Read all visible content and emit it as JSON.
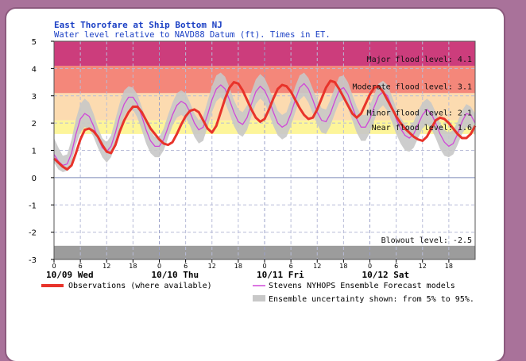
{
  "chart_data": {
    "type": "line",
    "title": "East Thorofare at Ship Bottom NJ",
    "subtitle": "Water level relative to NAVD88 Datum (ft). Times in ET.",
    "ylim": [
      -3,
      5
    ],
    "yticks": [
      -3,
      -2,
      -1,
      0,
      1,
      2,
      3,
      4,
      5
    ],
    "xlim_hours": [
      0,
      96
    ],
    "xtick_labels": [
      "0",
      "6",
      "12",
      "18",
      "0",
      "6",
      "12",
      "18",
      "0",
      "6",
      "12",
      "18",
      "0",
      "6",
      "12",
      "18"
    ],
    "xtick_hours": [
      0,
      6,
      12,
      18,
      24,
      30,
      36,
      42,
      48,
      54,
      60,
      66,
      72,
      78,
      84,
      90
    ],
    "day_labels": [
      {
        "hour": 0,
        "text": "10/09 Wed"
      },
      {
        "hour": 24,
        "text": "10/10 Thu"
      },
      {
        "hour": 48,
        "text": "10/11 Fri"
      },
      {
        "hour": 72,
        "text": "10/12 Sat"
      }
    ],
    "bands": [
      {
        "name": "blowout",
        "from": -3,
        "to": -2.5,
        "color": "#9c9c9c",
        "label": "Blowout level: -2.5"
      },
      {
        "name": "near",
        "from": 1.6,
        "to": 2.1,
        "color": "#fdf59a",
        "label": "Near flood level: 1.6"
      },
      {
        "name": "minor",
        "from": 2.1,
        "to": 3.1,
        "color": "#fcdbb0",
        "label": "Minor flood level: 2.1"
      },
      {
        "name": "moderate",
        "from": 3.1,
        "to": 4.1,
        "color": "#f4877a",
        "label": "Moderate flood level: 3.1"
      },
      {
        "name": "major",
        "from": 4.1,
        "to": 5,
        "color": "#cc3d7c",
        "label": "Major flood level: 4.1"
      }
    ],
    "series": [
      {
        "name": "Observations (where available)",
        "color": "#e8332a",
        "x": [
          0,
          1,
          2,
          3,
          4,
          5,
          6,
          7,
          8,
          9,
          10,
          11,
          12,
          13,
          14,
          15,
          16,
          17,
          18,
          19,
          20,
          21,
          22,
          23,
          24,
          25,
          26,
          27,
          28,
          29,
          30,
          31,
          32,
          33,
          34,
          35,
          36,
          37,
          38,
          39,
          40,
          41,
          42,
          43,
          44,
          45,
          46,
          47,
          48,
          49,
          50,
          51,
          52,
          53,
          54,
          55,
          56,
          57,
          58,
          59,
          60,
          61,
          62,
          63,
          64,
          65,
          66,
          67,
          68,
          69,
          70,
          71,
          72,
          73,
          74,
          75,
          76,
          77,
          78,
          79,
          80,
          81,
          82,
          83,
          84,
          85,
          86,
          87,
          88,
          89,
          90,
          91,
          92,
          93,
          94,
          95,
          96
        ],
        "y": [
          0.7,
          0.55,
          0.4,
          0.3,
          0.45,
          0.9,
          1.4,
          1.75,
          1.8,
          1.7,
          1.5,
          1.2,
          0.95,
          0.9,
          1.2,
          1.7,
          2.1,
          2.4,
          2.6,
          2.6,
          2.4,
          2.1,
          1.8,
          1.6,
          1.4,
          1.25,
          1.2,
          1.3,
          1.6,
          1.95,
          2.25,
          2.45,
          2.5,
          2.4,
          2.1,
          1.8,
          1.65,
          1.9,
          2.4,
          2.9,
          3.3,
          3.5,
          3.45,
          3.2,
          2.85,
          2.5,
          2.2,
          2.05,
          2.15,
          2.5,
          2.9,
          3.25,
          3.4,
          3.35,
          3.15,
          2.85,
          2.55,
          2.3,
          2.15,
          2.2,
          2.5,
          2.9,
          3.3,
          3.55,
          3.5,
          3.25,
          2.95,
          2.65,
          2.35,
          2.2,
          2.35,
          2.7,
          3.05,
          3.3,
          3.35,
          3.15,
          2.85,
          2.55,
          2.25,
          2.0,
          1.8,
          1.65,
          1.5,
          1.4,
          1.35,
          1.5,
          1.8,
          2.1,
          2.2,
          2.15,
          2.0,
          1.8,
          1.6,
          1.45,
          1.45,
          1.6,
          1.9
        ]
      },
      {
        "name": "Stevens NYHOPS Ensemble Forecast models",
        "color": "#d048d8",
        "x": [
          0,
          1,
          2,
          3,
          4,
          5,
          6,
          7,
          8,
          9,
          10,
          11,
          12,
          13,
          14,
          15,
          16,
          17,
          18,
          19,
          20,
          21,
          22,
          23,
          24,
          25,
          26,
          27,
          28,
          29,
          30,
          31,
          32,
          33,
          34,
          35,
          36,
          37,
          38,
          39,
          40,
          41,
          42,
          43,
          44,
          45,
          46,
          47,
          48,
          49,
          50,
          51,
          52,
          53,
          54,
          55,
          56,
          57,
          58,
          59,
          60,
          61,
          62,
          63,
          64,
          65,
          66,
          67,
          68,
          69,
          70,
          71,
          72,
          73,
          74,
          75,
          76,
          77,
          78,
          79,
          80,
          81,
          82,
          83,
          84,
          85,
          86,
          87,
          88,
          89,
          90,
          91,
          92,
          93,
          94,
          95,
          96
        ],
        "y": [
          0.85,
          0.6,
          0.45,
          0.5,
          0.9,
          1.6,
          2.15,
          2.35,
          2.25,
          1.9,
          1.45,
          1.1,
          0.95,
          1.15,
          1.65,
          2.25,
          2.7,
          2.95,
          2.95,
          2.7,
          2.25,
          1.75,
          1.35,
          1.15,
          1.15,
          1.4,
          1.85,
          2.3,
          2.65,
          2.8,
          2.7,
          2.4,
          2.0,
          1.75,
          1.85,
          2.3,
          2.85,
          3.25,
          3.4,
          3.25,
          2.85,
          2.4,
          2.05,
          1.95,
          2.2,
          2.7,
          3.15,
          3.35,
          3.2,
          2.85,
          2.4,
          2.0,
          1.85,
          1.95,
          2.35,
          2.85,
          3.3,
          3.45,
          3.25,
          2.85,
          2.4,
          2.1,
          2.05,
          2.35,
          2.8,
          3.2,
          3.3,
          3.05,
          2.6,
          2.15,
          1.85,
          1.85,
          2.15,
          2.6,
          3.0,
          3.15,
          3.0,
          2.6,
          2.15,
          1.8,
          1.55,
          1.45,
          1.6,
          1.95,
          2.3,
          2.5,
          2.35,
          2.0,
          1.6,
          1.3,
          1.15,
          1.25,
          1.6,
          2.05,
          2.35,
          2.3,
          2.0
        ]
      }
    ],
    "uncertainty": {
      "name": "Ensemble uncertainty shown: from 5% to 95%.",
      "color": "#c8c8c8",
      "lower": [
        0.55,
        0.3,
        0.2,
        0.25,
        0.55,
        1.2,
        1.65,
        1.85,
        1.8,
        1.5,
        1.1,
        0.75,
        0.55,
        0.75,
        1.2,
        1.8,
        2.25,
        2.5,
        2.5,
        2.2,
        1.75,
        1.25,
        0.9,
        0.75,
        0.75,
        1.0,
        1.45,
        1.9,
        2.2,
        2.3,
        2.2,
        1.9,
        1.5,
        1.25,
        1.35,
        1.85,
        2.4,
        2.8,
        2.95,
        2.75,
        2.35,
        1.9,
        1.6,
        1.5,
        1.75,
        2.25,
        2.7,
        2.9,
        2.75,
        2.35,
        1.9,
        1.55,
        1.4,
        1.5,
        1.9,
        2.4,
        2.85,
        3.0,
        2.75,
        2.35,
        1.95,
        1.65,
        1.6,
        1.9,
        2.35,
        2.75,
        2.85,
        2.55,
        2.1,
        1.65,
        1.35,
        1.35,
        1.65,
        2.1,
        2.5,
        2.65,
        2.45,
        2.05,
        1.6,
        1.25,
        1.0,
        0.95,
        1.1,
        1.45,
        1.8,
        1.95,
        1.8,
        1.45,
        1.05,
        0.8,
        0.75,
        0.85,
        1.2,
        1.6,
        1.85,
        1.8,
        1.55
      ],
      "upper": [
        1.45,
        1.1,
        0.8,
        0.85,
        1.4,
        2.15,
        2.7,
        2.9,
        2.75,
        2.35,
        1.85,
        1.45,
        1.3,
        1.55,
        2.15,
        2.75,
        3.2,
        3.35,
        3.3,
        3.05,
        2.6,
        2.1,
        1.7,
        1.5,
        1.5,
        1.8,
        2.3,
        2.75,
        3.1,
        3.2,
        3.1,
        2.75,
        2.35,
        2.1,
        2.25,
        2.8,
        3.35,
        3.75,
        3.85,
        3.7,
        3.3,
        2.85,
        2.5,
        2.4,
        2.65,
        3.15,
        3.6,
        3.8,
        3.65,
        3.3,
        2.85,
        2.45,
        2.3,
        2.4,
        2.85,
        3.35,
        3.75,
        3.85,
        3.65,
        3.25,
        2.85,
        2.55,
        2.5,
        2.85,
        3.3,
        3.7,
        3.75,
        3.5,
        3.05,
        2.6,
        2.3,
        2.3,
        2.65,
        3.05,
        3.45,
        3.55,
        3.4,
        3.0,
        2.55,
        2.2,
        1.95,
        1.9,
        2.05,
        2.45,
        2.75,
        2.9,
        2.75,
        2.4,
        2.0,
        1.75,
        1.65,
        1.75,
        2.05,
        2.45,
        2.7,
        2.6,
        2.35
      ]
    }
  }
}
